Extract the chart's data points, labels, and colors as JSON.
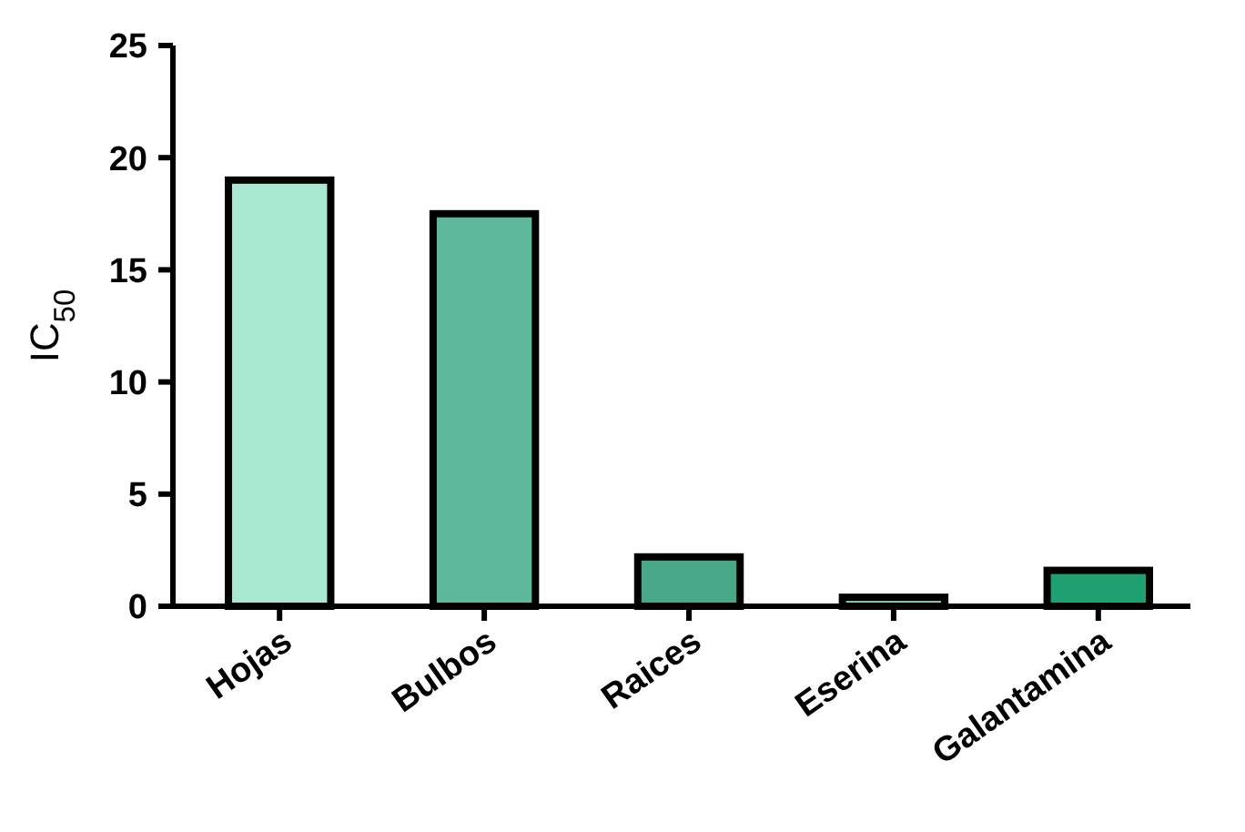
{
  "chart_data": {
    "type": "bar",
    "ylabel": "IC$_{50}$",
    "categories": [
      "Hojas",
      "Bulbos",
      "Raices",
      "Eserina",
      "Galantamina"
    ],
    "values": [
      19,
      17.5,
      2.2,
      0.4,
      1.6
    ],
    "colors": [
      "#a8e8d0",
      "#5fb89c",
      "#4aa88a",
      "#8fd4c0",
      "#1fa070"
    ],
    "ylim": [
      0,
      25
    ],
    "yticks": [
      0,
      5,
      10,
      15,
      20,
      25
    ],
    "grid": false
  }
}
